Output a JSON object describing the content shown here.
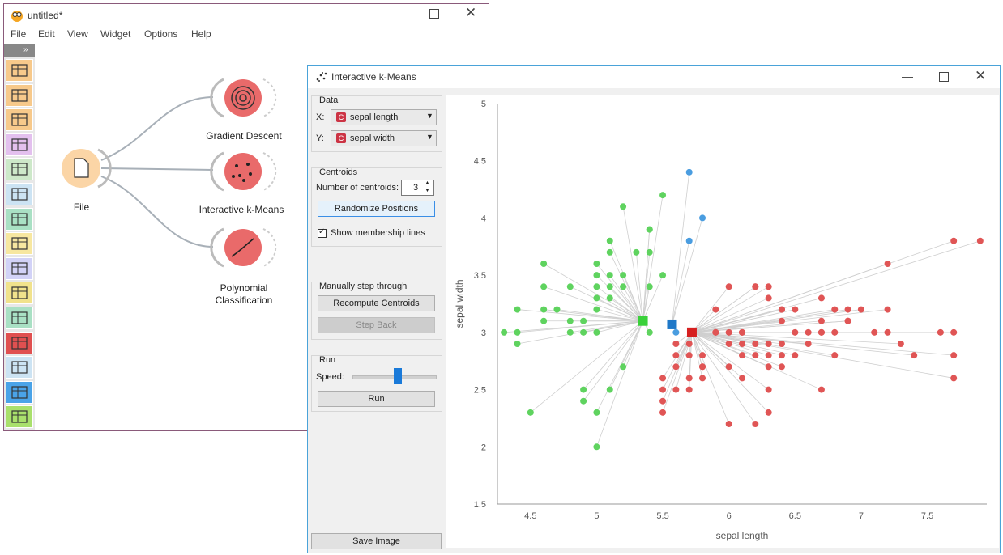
{
  "canvas_window": {
    "title": "untitled*",
    "menu": [
      "File",
      "Edit",
      "View",
      "Widget",
      "Options",
      "Help"
    ],
    "nodes": {
      "file": "File",
      "gradient": "Gradient Descent",
      "kmeans": "Interactive k-Means",
      "poly_line1": "Polynomial",
      "poly_line2": "Classification"
    },
    "toolbox_colors": [
      "#f7c98b",
      "#f7c98b",
      "#f7c98b",
      "#e3c0ee",
      "#cde8c9",
      "#cce3f3",
      "#a9e0c4",
      "#f7e7a0",
      "#d2d2f7",
      "#f1e28c",
      "#a9e0c4",
      "#e05050",
      "#cce3f3",
      "#4aa3e8",
      "#a9e06c"
    ],
    "toolbox_icons": [
      "table-icon",
      "scatter-icon",
      "tree-icon",
      "scatter-purple-icon",
      "grid-icon",
      "anchor-icon",
      "walker-icon",
      "image-icon",
      "star-icon",
      "arrows-icon",
      "network-icon",
      "graduation-icon",
      "text-icon",
      "curve-icon",
      "dots-icon"
    ]
  },
  "kmeans_window": {
    "title": "Interactive k-Means",
    "data_box": {
      "title": "Data",
      "x_label": "X:",
      "x_value": "sepal length",
      "y_label": "Y:",
      "y_value": "sepal width",
      "badge": "C"
    },
    "centroids_box": {
      "title": "Centroids",
      "num_label": "Number of centroids:",
      "num_value": "3",
      "randomize": "Randomize Positions",
      "show_lines": "Show membership lines"
    },
    "manual_box": {
      "title": "Manually step through",
      "recompute": "Recompute Centroids",
      "step_back": "Step Back"
    },
    "run_box": {
      "title": "Run",
      "speed_label": "Speed:",
      "speed_level": 0.55,
      "run": "Run"
    },
    "save_image": "Save Image"
  },
  "chart_data": {
    "type": "scatter",
    "xlabel": "sepal length",
    "ylabel": "sepal width",
    "xlim": [
      4.25,
      7.95
    ],
    "ylim": [
      1.5,
      5.0
    ],
    "xticks": [
      4.5,
      5,
      5.5,
      6,
      6.5,
      7,
      7.5
    ],
    "yticks": [
      1.5,
      2,
      2.5,
      3,
      3.5,
      4,
      4.5,
      5
    ],
    "clusters": [
      {
        "color": "#5fd35f",
        "centroid": [
          5.35,
          3.1
        ],
        "points": [
          [
            4.3,
            3.0
          ],
          [
            4.4,
            2.9
          ],
          [
            4.4,
            3.0
          ],
          [
            4.4,
            3.2
          ],
          [
            4.5,
            2.3
          ],
          [
            4.6,
            3.1
          ],
          [
            4.6,
            3.2
          ],
          [
            4.6,
            3.4
          ],
          [
            4.6,
            3.6
          ],
          [
            4.7,
            3.2
          ],
          [
            4.8,
            3.0
          ],
          [
            4.8,
            3.1
          ],
          [
            4.8,
            3.4
          ],
          [
            4.9,
            2.4
          ],
          [
            4.9,
            2.5
          ],
          [
            4.9,
            3.0
          ],
          [
            4.9,
            3.1
          ],
          [
            5.0,
            2.0
          ],
          [
            5.0,
            2.3
          ],
          [
            5.0,
            3.0
          ],
          [
            5.0,
            3.2
          ],
          [
            5.0,
            3.3
          ],
          [
            5.0,
            3.4
          ],
          [
            5.0,
            3.5
          ],
          [
            5.0,
            3.6
          ],
          [
            5.1,
            3.3
          ],
          [
            5.1,
            3.4
          ],
          [
            5.1,
            3.5
          ],
          [
            5.1,
            3.7
          ],
          [
            5.1,
            3.8
          ],
          [
            5.2,
            2.7
          ],
          [
            5.2,
            3.4
          ],
          [
            5.2,
            3.5
          ],
          [
            5.2,
            4.1
          ],
          [
            5.3,
            3.7
          ],
          [
            5.4,
            3.4
          ],
          [
            5.4,
            3.7
          ],
          [
            5.4,
            3.9
          ],
          [
            5.5,
            4.2
          ],
          [
            5.4,
            3.0
          ],
          [
            5.1,
            2.5
          ],
          [
            5.4,
            3.9
          ],
          [
            5.5,
            3.5
          ]
        ]
      },
      {
        "color": "#4a9de0",
        "centroid": [
          5.57,
          3.07
        ],
        "points": [
          [
            5.7,
            4.4
          ],
          [
            5.8,
            4.0
          ],
          [
            5.7,
            3.8
          ],
          [
            5.6,
            3.0
          ]
        ]
      },
      {
        "color": "#e05555",
        "centroid": [
          5.72,
          3.0
        ],
        "points": [
          [
            5.5,
            2.3
          ],
          [
            5.5,
            2.4
          ],
          [
            5.5,
            2.5
          ],
          [
            5.5,
            2.6
          ],
          [
            5.6,
            2.5
          ],
          [
            5.6,
            2.7
          ],
          [
            5.6,
            2.8
          ],
          [
            5.6,
            2.9
          ],
          [
            5.7,
            2.5
          ],
          [
            5.7,
            2.6
          ],
          [
            5.7,
            2.8
          ],
          [
            5.7,
            2.9
          ],
          [
            5.8,
            2.6
          ],
          [
            5.8,
            2.7
          ],
          [
            5.8,
            2.8
          ],
          [
            5.9,
            3.0
          ],
          [
            5.9,
            3.2
          ],
          [
            6.0,
            2.2
          ],
          [
            6.0,
            2.7
          ],
          [
            6.0,
            3.0
          ],
          [
            6.0,
            3.4
          ],
          [
            6.1,
            2.6
          ],
          [
            6.1,
            2.8
          ],
          [
            6.1,
            2.9
          ],
          [
            6.1,
            3.0
          ],
          [
            6.2,
            2.2
          ],
          [
            6.2,
            2.8
          ],
          [
            6.2,
            2.9
          ],
          [
            6.2,
            3.4
          ],
          [
            6.3,
            2.3
          ],
          [
            6.3,
            2.5
          ],
          [
            6.3,
            2.7
          ],
          [
            6.3,
            2.8
          ],
          [
            6.3,
            2.9
          ],
          [
            6.3,
            3.3
          ],
          [
            6.3,
            3.4
          ],
          [
            6.4,
            2.7
          ],
          [
            6.4,
            2.8
          ],
          [
            6.4,
            2.9
          ],
          [
            6.4,
            3.1
          ],
          [
            6.4,
            3.2
          ],
          [
            6.5,
            2.8
          ],
          [
            6.5,
            3.0
          ],
          [
            6.5,
            3.2
          ],
          [
            6.6,
            2.9
          ],
          [
            6.6,
            3.0
          ],
          [
            6.7,
            2.5
          ],
          [
            6.7,
            3.0
          ],
          [
            6.7,
            3.1
          ],
          [
            6.7,
            3.3
          ],
          [
            6.8,
            2.8
          ],
          [
            6.8,
            3.0
          ],
          [
            6.8,
            3.2
          ],
          [
            6.9,
            3.1
          ],
          [
            6.9,
            3.2
          ],
          [
            7.0,
            3.2
          ],
          [
            7.1,
            3.0
          ],
          [
            7.2,
            3.0
          ],
          [
            7.2,
            3.2
          ],
          [
            7.2,
            3.6
          ],
          [
            7.3,
            2.9
          ],
          [
            7.4,
            2.8
          ],
          [
            7.6,
            3.0
          ],
          [
            7.7,
            2.6
          ],
          [
            7.7,
            2.8
          ],
          [
            7.7,
            3.0
          ],
          [
            7.7,
            3.8
          ],
          [
            7.9,
            3.8
          ],
          [
            6.9,
            3.1
          ],
          [
            6.1,
            3.0
          ],
          [
            5.8,
            2.7
          ],
          [
            6.4,
            3.2
          ],
          [
            6.0,
            2.9
          ],
          [
            5.9,
            3.0
          ],
          [
            6.2,
            3.4
          ],
          [
            6.7,
            3.0
          ]
        ]
      }
    ]
  }
}
